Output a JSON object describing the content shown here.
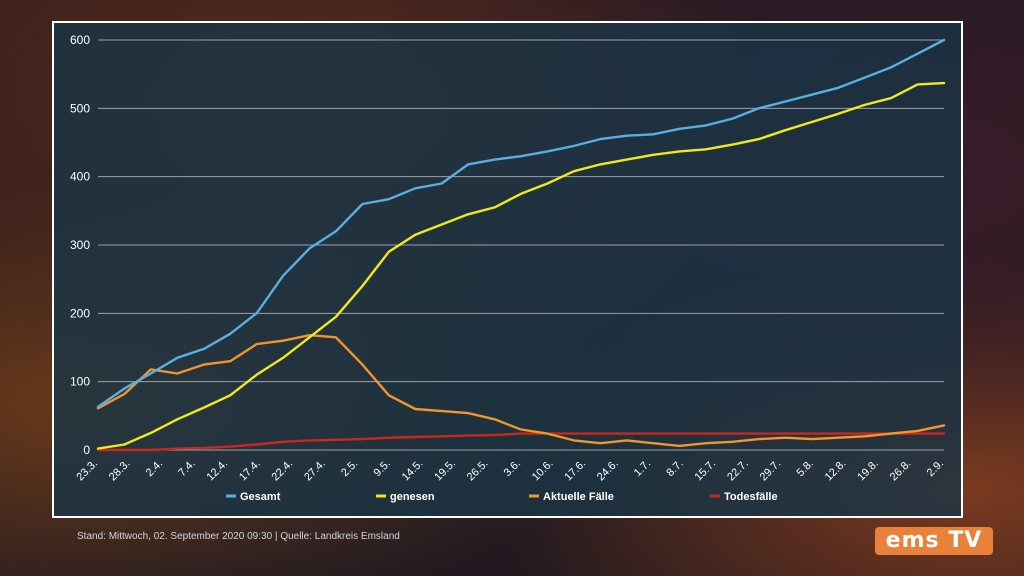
{
  "footer": {
    "stand_label": "Stand:",
    "stand_value": "Mittwoch, 02. September 2020 09:30",
    "source_label": "Quelle:",
    "source_value": "Landkreis Emsland"
  },
  "logo": {
    "text": "ems TV"
  },
  "chart_data": {
    "type": "line",
    "title": "",
    "xlabel": "",
    "ylabel": "",
    "ylim": [
      0,
      600
    ],
    "yticks": [
      0,
      100,
      200,
      300,
      400,
      500,
      600
    ],
    "grid": true,
    "legend_position": "bottom",
    "x_tick_labels": [
      "23.3.",
      "28.3.",
      "2.4.",
      "7.4.",
      "12.4.",
      "17.4.",
      "22.4.",
      "27.4.",
      "2.5.",
      "9.5.",
      "14.5.",
      "19.5.",
      "26.5.",
      "3.6.",
      "10.6.",
      "17.6.",
      "24.6.",
      "1.7.",
      "8.7.",
      "15.7.",
      "22.7.",
      "29.7.",
      "5.8.",
      "12.8.",
      "19.8.",
      "26.8.",
      "2.9."
    ],
    "series": [
      {
        "name": "Gesamt",
        "color": "#5aaee0",
        "values": [
          63,
          90,
          112,
          135,
          148,
          170,
          200,
          255,
          295,
          320,
          360,
          367,
          383,
          390,
          418,
          425,
          430,
          437,
          445,
          455,
          460,
          462,
          470,
          475,
          485,
          500,
          510,
          520,
          530,
          545,
          560,
          580,
          600
        ]
      },
      {
        "name": "genesen",
        "color": "#f0ea1a",
        "values": [
          2,
          8,
          25,
          45,
          62,
          80,
          110,
          135,
          165,
          195,
          240,
          290,
          315,
          330,
          345,
          355,
          375,
          390,
          408,
          418,
          425,
          432,
          437,
          440,
          447,
          455,
          468,
          480,
          492,
          505,
          515,
          535,
          537
        ]
      },
      {
        "name": "Aktuelle Fälle",
        "color": "#f0962a",
        "values": [
          61,
          82,
          118,
          112,
          125,
          130,
          155,
          160,
          168,
          165,
          125,
          80,
          60,
          57,
          54,
          45,
          30,
          24,
          14,
          10,
          14,
          10,
          6,
          10,
          12,
          16,
          18,
          16,
          18,
          20,
          24,
          28,
          36
        ]
      },
      {
        "name": "Todesfälle",
        "color": "#c8281e",
        "values": [
          0,
          0,
          0,
          2,
          3,
          5,
          8,
          12,
          14,
          15,
          16,
          18,
          19,
          20,
          21,
          22,
          24,
          24,
          24,
          24,
          24,
          24,
          24,
          24,
          24,
          24,
          24,
          24,
          24,
          24,
          24,
          24,
          24
        ]
      }
    ]
  }
}
